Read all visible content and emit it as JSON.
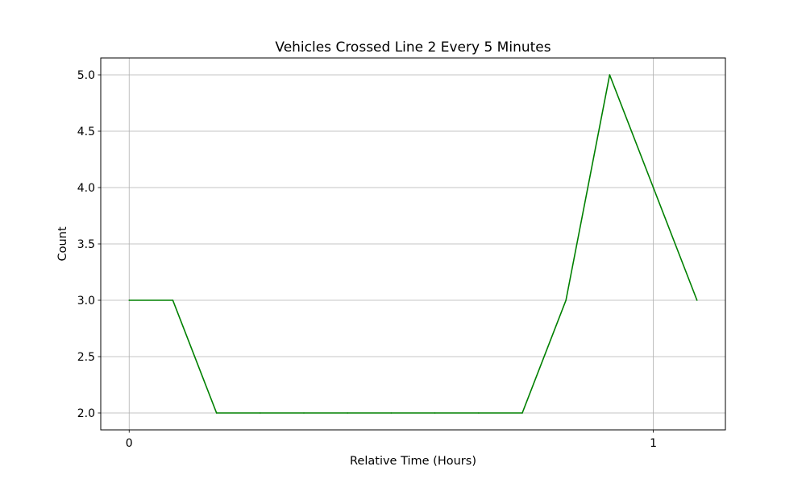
{
  "chart_data": {
    "type": "line",
    "title": "Vehicles Crossed Line 2 Every 5 Minutes",
    "xlabel": "Relative Time (Hours)",
    "ylabel": "Count",
    "x_ticks": [
      {
        "value": 0,
        "label": "0"
      },
      {
        "value": 1,
        "label": "1"
      }
    ],
    "y_ticks": [
      {
        "value": 2.0,
        "label": "2.0"
      },
      {
        "value": 2.5,
        "label": "2.5"
      },
      {
        "value": 3.0,
        "label": "3.0"
      },
      {
        "value": 3.5,
        "label": "3.5"
      },
      {
        "value": 4.0,
        "label": "4.0"
      },
      {
        "value": 4.5,
        "label": "4.5"
      },
      {
        "value": 5.0,
        "label": "5.0"
      }
    ],
    "xlim": [
      -0.0542,
      1.1375
    ],
    "ylim": [
      1.85,
      5.15
    ],
    "grid": true,
    "series": [
      {
        "color": "#008000",
        "x": [
          0,
          0.0833,
          0.1667,
          0.25,
          0.3333,
          0.4167,
          0.5,
          0.5833,
          0.6667,
          0.75,
          0.8333,
          0.9167,
          1.0,
          1.0833
        ],
        "y": [
          3,
          3,
          2,
          2,
          2,
          2,
          2,
          2,
          2,
          2,
          3,
          5,
          4,
          3
        ]
      }
    ]
  }
}
